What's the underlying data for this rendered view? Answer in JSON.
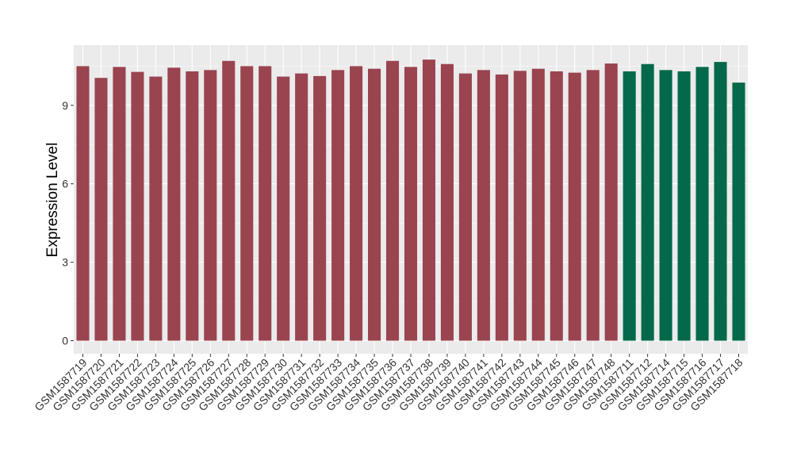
{
  "chart_data": {
    "type": "bar",
    "ylabel": "Expression Level",
    "xlabel": "",
    "ylim": [
      -0.5,
      11.3
    ],
    "yticks": [
      0,
      3,
      6,
      9
    ],
    "grid": true,
    "legend": "none",
    "colors": {
      "group_a": "#9a4450",
      "group_b": "#04694a",
      "panel": "#ebebeb",
      "grid": "#ffffff"
    },
    "categories": [
      "GSM1587719",
      "GSM1587720",
      "GSM1587721",
      "GSM1587722",
      "GSM1587723",
      "GSM1587724",
      "GSM1587725",
      "GSM1587726",
      "GSM1587727",
      "GSM1587728",
      "GSM1587729",
      "GSM1587730",
      "GSM1587731",
      "GSM1587732",
      "GSM1587733",
      "GSM1587734",
      "GSM1587735",
      "GSM1587736",
      "GSM1587737",
      "GSM1587738",
      "GSM1587739",
      "GSM1587740",
      "GSM1587741",
      "GSM1587742",
      "GSM1587743",
      "GSM1587744",
      "GSM1587745",
      "GSM1587746",
      "GSM1587747",
      "GSM1587748",
      "GSM1587711",
      "GSM1587712",
      "GSM1587714",
      "GSM1587715",
      "GSM1587716",
      "GSM1587717",
      "GSM1587718"
    ],
    "values": [
      10.5,
      10.05,
      10.47,
      10.28,
      10.1,
      10.44,
      10.3,
      10.35,
      10.7,
      10.5,
      10.5,
      10.1,
      10.22,
      10.12,
      10.35,
      10.5,
      10.4,
      10.7,
      10.47,
      10.75,
      10.58,
      10.22,
      10.35,
      10.18,
      10.32,
      10.4,
      10.3,
      10.25,
      10.35,
      10.6,
      10.3,
      10.58,
      10.35,
      10.3,
      10.47,
      10.66,
      9.87
    ],
    "groups": [
      "a",
      "a",
      "a",
      "a",
      "a",
      "a",
      "a",
      "a",
      "a",
      "a",
      "a",
      "a",
      "a",
      "a",
      "a",
      "a",
      "a",
      "a",
      "a",
      "a",
      "a",
      "a",
      "a",
      "a",
      "a",
      "a",
      "a",
      "a",
      "a",
      "a",
      "b",
      "b",
      "b",
      "b",
      "b",
      "b",
      "b"
    ]
  }
}
